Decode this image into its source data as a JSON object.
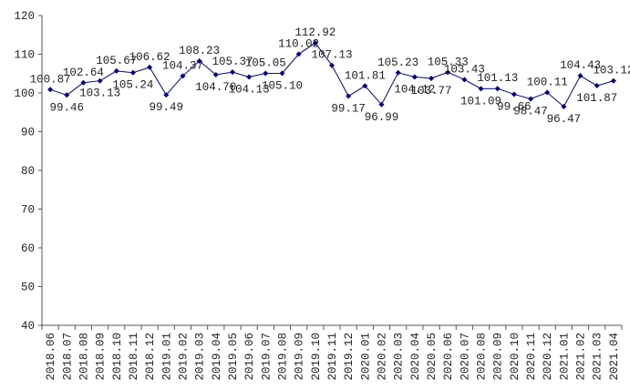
{
  "chart_data": {
    "type": "line",
    "categories": [
      "2018.06",
      "2018.07",
      "2018.08",
      "2018.09",
      "2018.10",
      "2018.11",
      "2018.12",
      "2019.01",
      "2019.02",
      "2019.03",
      "2019.04",
      "2019.05",
      "2019.06",
      "2019.07",
      "2019.08",
      "2019.09",
      "2019.10",
      "2019.11",
      "2019.12",
      "2020.01",
      "2020.02",
      "2020.03",
      "2020.04",
      "2020.05",
      "2020.06",
      "2020.07",
      "2020.08",
      "2020.09",
      "2020.10",
      "2020.11",
      "2020.12",
      "2021.01",
      "2021.02",
      "2021.03",
      "2021.04"
    ],
    "values": [
      100.87,
      99.46,
      102.64,
      103.13,
      105.67,
      105.24,
      106.62,
      99.49,
      104.37,
      108.23,
      104.7,
      105.37,
      104.13,
      105.05,
      105.1,
      110.02,
      112.92,
      107.13,
      99.17,
      101.81,
      96.99,
      105.23,
      104.12,
      103.77,
      105.33,
      103.43,
      101.09,
      101.13,
      99.66,
      98.47,
      100.11,
      96.47,
      104.43,
      101.87,
      103.12
    ],
    "value_labels": [
      "100.87",
      "99.46",
      "102.64",
      "103.13",
      "105.67",
      "105.24",
      "106.62",
      "99.49",
      "104.37",
      "108.23",
      "104.70",
      "105.37",
      "104.13",
      "105.05",
      "105.10",
      "110.02",
      "112.92",
      "107.13",
      "99.17",
      "101.81",
      "96.99",
      "105.23",
      "104.12",
      "103.77",
      "105.33",
      "103.43",
      "101.09",
      "101.13",
      "99.66",
      "98.47",
      "100.11",
      "96.47",
      "104.43",
      "101.87",
      "103.12"
    ],
    "color": "#000080",
    "ylim": [
      40,
      120
    ],
    "yticks": [
      40,
      50,
      60,
      70,
      80,
      90,
      100,
      110,
      120
    ]
  }
}
